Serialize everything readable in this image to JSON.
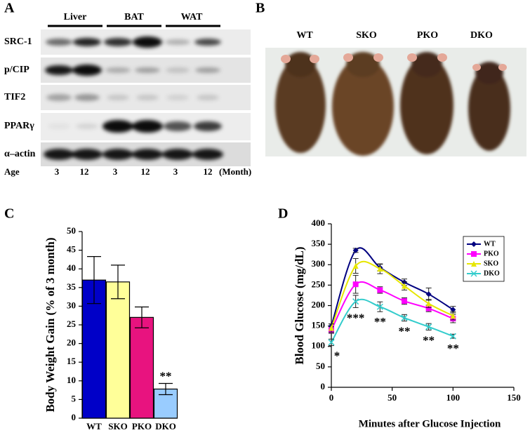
{
  "panels": {
    "A": {
      "label": "A",
      "groups": [
        "Liver",
        "BAT",
        "WAT"
      ],
      "rows": [
        "SRC-1",
        "p/CIP",
        "TIF2",
        "PPARγ",
        "α–actin"
      ],
      "age_label": "Age",
      "ages": [
        "3",
        "12",
        "3",
        "12",
        "3",
        "12"
      ],
      "age_unit": "(Month)"
    },
    "B": {
      "label": "B",
      "strains": [
        "WT",
        "SKO",
        "PKO",
        "DKO"
      ]
    }
  },
  "chart_data": [
    {
      "type": "bar",
      "label": "C",
      "y_label": "Body Weight Gain (% of 3 month)",
      "categories": [
        "WT",
        "SKO",
        "PKO",
        "DKO"
      ],
      "values": [
        37,
        36.5,
        27,
        7.8
      ],
      "errors": [
        6.3,
        4.5,
        2.8,
        1.5
      ],
      "colors": [
        "#0000c8",
        "#ffff99",
        "#e8137f",
        "#99ccff"
      ],
      "annotations": [
        null,
        null,
        null,
        "**"
      ],
      "ylim": [
        0,
        50
      ],
      "yticks": [
        0,
        5,
        10,
        15,
        20,
        25,
        30,
        35,
        40,
        45,
        50
      ]
    },
    {
      "type": "line",
      "label": "D",
      "x_label": "Minutes after Glucose Injection",
      "y_label": "Blood Glucose (mg/dL)",
      "x": [
        0,
        20,
        40,
        60,
        80,
        100
      ],
      "series": [
        {
          "name": "WT",
          "color": "#000080",
          "marker": "diamond",
          "values": [
            150,
            335,
            293,
            257,
            228,
            190
          ],
          "errors": [
            5,
            5,
            8,
            8,
            15,
            8
          ]
        },
        {
          "name": "PKO",
          "color": "#ff00ff",
          "marker": "square",
          "values": [
            140,
            252,
            238,
            211,
            193,
            168
          ],
          "errors": [
            8,
            22,
            8,
            8,
            8,
            10
          ]
        },
        {
          "name": "SKO",
          "color": "#e6e600",
          "marker": "triangle",
          "values": [
            145,
            297,
            290,
            248,
            205,
            175
          ],
          "errors": [
            10,
            18,
            12,
            10,
            10,
            10
          ]
        },
        {
          "name": "DKO",
          "color": "#33cccc",
          "marker": "x",
          "values": [
            110,
            210,
            197,
            170,
            148,
            125
          ],
          "errors": [
            8,
            15,
            12,
            8,
            8,
            5
          ]
        }
      ],
      "annotations": [
        "*",
        "***",
        "**",
        "**",
        "**",
        "**"
      ],
      "xlim": [
        0,
        150
      ],
      "xticks": [
        0,
        50,
        100,
        150
      ],
      "ylim": [
        0,
        400
      ],
      "yticks": [
        0,
        50,
        100,
        150,
        200,
        250,
        300,
        350,
        400
      ],
      "legend": "upper right"
    }
  ]
}
